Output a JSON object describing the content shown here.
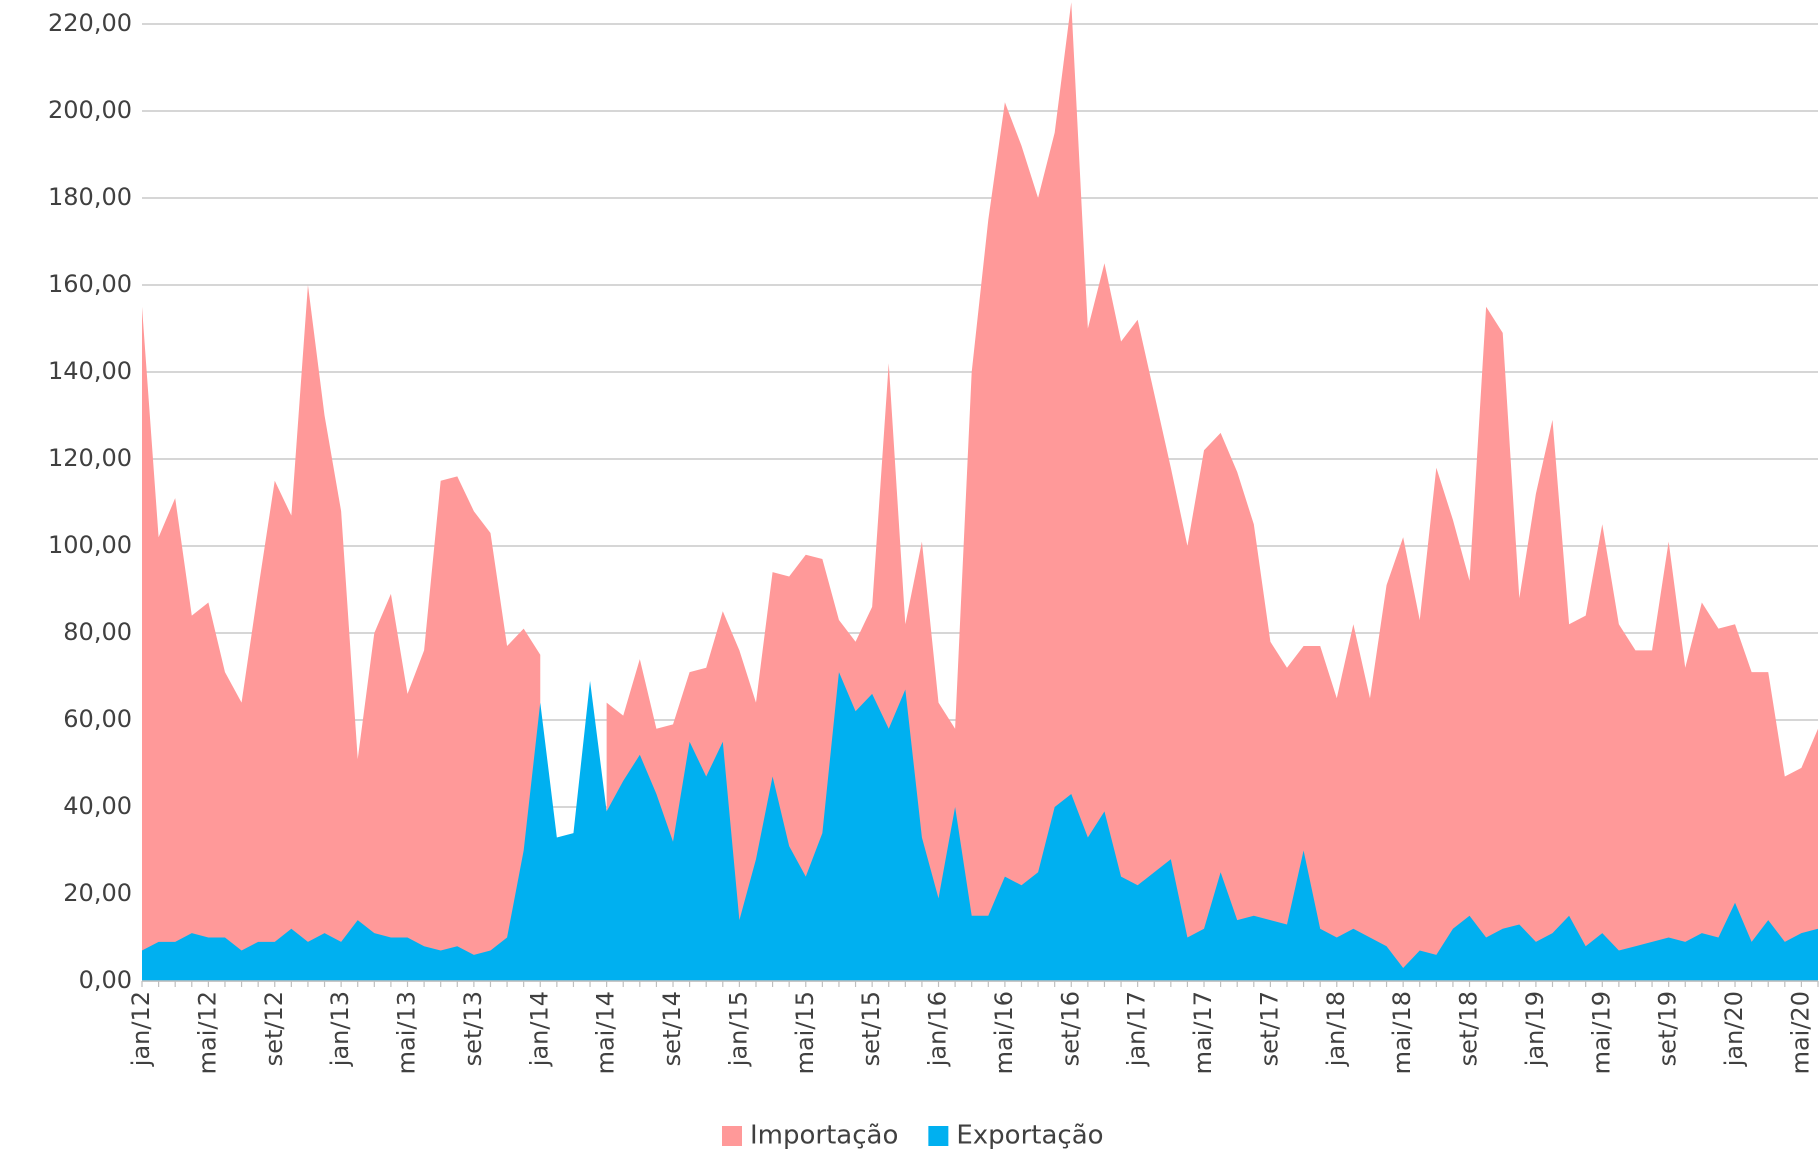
{
  "chart_data": {
    "type": "area",
    "categories": [
      "jan/12",
      null,
      null,
      null,
      "mai/12",
      null,
      null,
      null,
      "set/12",
      null,
      null,
      null,
      "jan/13",
      null,
      null,
      null,
      "mai/13",
      null,
      null,
      null,
      "set/13",
      null,
      null,
      null,
      "jan/14",
      null,
      null,
      null,
      "mai/14",
      null,
      null,
      null,
      "set/14",
      null,
      null,
      null,
      "jan/15",
      null,
      null,
      null,
      "mai/15",
      null,
      null,
      null,
      "set/15",
      null,
      null,
      null,
      "jan/16",
      null,
      null,
      null,
      "mai/16",
      null,
      null,
      null,
      "set/16",
      null,
      null,
      null,
      "jan/17",
      null,
      null,
      null,
      "mai/17",
      null,
      null,
      null,
      "set/17",
      null,
      null,
      null,
      "jan/18",
      null,
      null,
      null,
      "mai/18",
      null,
      null,
      null,
      "set/18",
      null,
      null,
      null,
      "jan/19",
      null,
      null,
      null,
      "mai/19",
      null,
      null,
      null,
      "set/19",
      null,
      null,
      null,
      "jan/20",
      null,
      null,
      null,
      "mai/20",
      null
    ],
    "series": [
      {
        "name": "Importação",
        "color": "#ff9999",
        "values": [
          155,
          102,
          111,
          84,
          87,
          71,
          64,
          90,
          115,
          107,
          160,
          130,
          108,
          51,
          80,
          89,
          66,
          76,
          115,
          116,
          108,
          103,
          77,
          81,
          75,
          null,
          null,
          null,
          64,
          61,
          74,
          58,
          59,
          71,
          72,
          85,
          76,
          64,
          94,
          93,
          98,
          97,
          83,
          78,
          86,
          142,
          82,
          101,
          64,
          58,
          140,
          175,
          202,
          192,
          180,
          195,
          225,
          150,
          165,
          147,
          152,
          135,
          118,
          100,
          122,
          126,
          117,
          105,
          78,
          72,
          77,
          77,
          65,
          82,
          65,
          91,
          102,
          83,
          118,
          106,
          92,
          155,
          149,
          88,
          112,
          129,
          82,
          84,
          105,
          82,
          76,
          76,
          101,
          72,
          87,
          81,
          82,
          71,
          71,
          47,
          49,
          58
        ]
      },
      {
        "name": "Exportação",
        "color": "#00b0f0",
        "values": [
          7,
          9,
          9,
          11,
          10,
          10,
          7,
          9,
          9,
          12,
          9,
          11,
          9,
          14,
          11,
          10,
          10,
          8,
          7,
          8,
          6,
          7,
          10,
          30,
          64,
          33,
          34,
          69,
          39,
          46,
          52,
          43,
          32,
          55,
          47,
          55,
          14,
          28,
          47,
          31,
          24,
          34,
          71,
          62,
          66,
          58,
          67,
          33,
          19,
          40,
          15,
          15,
          24,
          22,
          25,
          40,
          43,
          33,
          39,
          24,
          22,
          25,
          28,
          10,
          12,
          25,
          14,
          15,
          14,
          13,
          30,
          12,
          10,
          12,
          10,
          8,
          3,
          7,
          6,
          12,
          15,
          10,
          12,
          13,
          9,
          11,
          15,
          8,
          11,
          7,
          8,
          9,
          10,
          9,
          11,
          10,
          18,
          9,
          14,
          9,
          11,
          12
        ]
      }
    ],
    "ylim": [
      0,
      220
    ],
    "yticks": [
      {
        "value": 0,
        "label": "0,00"
      },
      {
        "value": 20,
        "label": "20,00"
      },
      {
        "value": 40,
        "label": "40,00"
      },
      {
        "value": 60,
        "label": "60,00"
      },
      {
        "value": 80,
        "label": "80,00"
      },
      {
        "value": 100,
        "label": "100,00"
      },
      {
        "value": 120,
        "label": "120,00"
      },
      {
        "value": 140,
        "label": "140,00"
      },
      {
        "value": 160,
        "label": "160,00"
      },
      {
        "value": 180,
        "label": "180,00"
      },
      {
        "value": 200,
        "label": "200,00"
      },
      {
        "value": 220,
        "label": "220,00"
      }
    ],
    "grid": true,
    "legend": "bottom"
  }
}
